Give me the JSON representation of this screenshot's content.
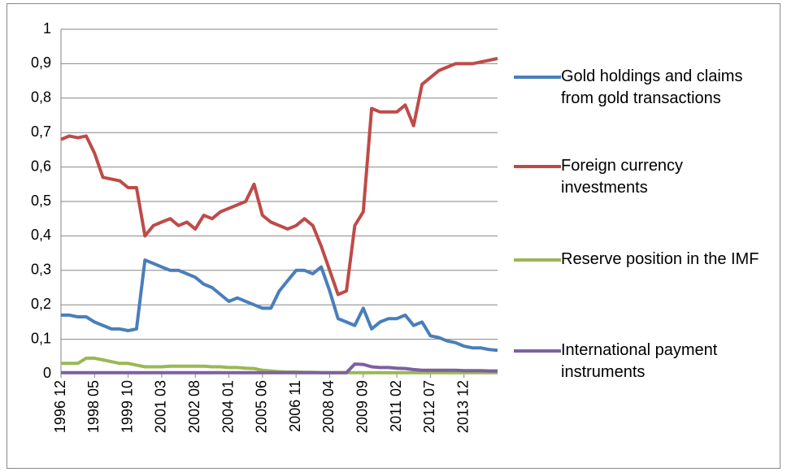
{
  "chart_data": {
    "type": "line",
    "categories": [
      "1996 12",
      null,
      null,
      null,
      "1998 05",
      null,
      null,
      null,
      "1999 10",
      null,
      null,
      null,
      "2001 03",
      null,
      null,
      null,
      "2002 08",
      null,
      null,
      null,
      "2004 01",
      null,
      null,
      null,
      "2005 06",
      null,
      null,
      null,
      "2006 11",
      null,
      null,
      null,
      "2008 04",
      null,
      null,
      null,
      "2009 09",
      null,
      null,
      null,
      "2011 02",
      null,
      null,
      null,
      "2012 07",
      null,
      null,
      null,
      "2013 12",
      null,
      null,
      null,
      null
    ],
    "series": [
      {
        "name": "Gold holdings and claims from gold transactions",
        "color": "#4a7ebb",
        "values": [
          0.17,
          0.17,
          0.165,
          0.165,
          0.15,
          0.14,
          0.13,
          0.13,
          0.125,
          0.13,
          0.33,
          0.32,
          0.31,
          0.3,
          0.3,
          0.29,
          0.28,
          0.26,
          0.25,
          0.23,
          0.21,
          0.22,
          0.21,
          0.2,
          0.19,
          0.19,
          0.24,
          0.27,
          0.3,
          0.3,
          0.29,
          0.31,
          0.24,
          0.16,
          0.15,
          0.14,
          0.19,
          0.13,
          0.15,
          0.16,
          0.16,
          0.17,
          0.14,
          0.15,
          0.11,
          0.105,
          0.095,
          0.09,
          0.08,
          0.075,
          0.075,
          0.07,
          0.068
        ]
      },
      {
        "name": "Foreign currency investments",
        "color": "#be4b48",
        "values": [
          0.68,
          0.69,
          0.685,
          0.69,
          0.64,
          0.57,
          0.565,
          0.56,
          0.54,
          0.54,
          0.4,
          0.43,
          0.44,
          0.45,
          0.43,
          0.44,
          0.42,
          0.46,
          0.45,
          0.47,
          0.48,
          0.49,
          0.5,
          0.55,
          0.46,
          0.44,
          0.43,
          0.42,
          0.43,
          0.45,
          0.43,
          0.37,
          0.3,
          0.23,
          0.24,
          0.43,
          0.47,
          0.77,
          0.76,
          0.76,
          0.76,
          0.78,
          0.72,
          0.84,
          0.86,
          0.88,
          0.89,
          0.9,
          0.9,
          0.9,
          0.905,
          0.91,
          0.915
        ]
      },
      {
        "name": "Reserve position in the IMF",
        "color": "#98b954",
        "values": [
          0.03,
          0.03,
          0.03,
          0.045,
          0.045,
          0.04,
          0.035,
          0.03,
          0.03,
          0.025,
          0.02,
          0.02,
          0.02,
          0.022,
          0.022,
          0.022,
          0.022,
          0.022,
          0.02,
          0.02,
          0.018,
          0.018,
          0.016,
          0.015,
          0.01,
          0.008,
          0.006,
          0.005,
          0.005,
          0.004,
          0.004,
          0.003,
          0.003,
          0.003,
          0.003,
          0.003,
          0.003,
          0.003,
          0.003,
          0.003,
          0.003,
          0.003,
          0.003,
          0.003,
          0.003,
          0.003,
          0.003,
          0.003,
          0.003,
          0.003,
          0.003,
          0.003,
          0.003
        ]
      },
      {
        "name": "International payment instruments",
        "color": "#7d60a0",
        "values": [
          0.003,
          0.003,
          0.003,
          0.003,
          0.003,
          0.003,
          0.003,
          0.003,
          0.003,
          0.003,
          0.003,
          0.003,
          0.003,
          0.003,
          0.003,
          0.003,
          0.003,
          0.003,
          0.003,
          0.003,
          0.003,
          0.003,
          0.003,
          0.003,
          0.003,
          0.003,
          0.003,
          0.003,
          0.003,
          0.003,
          0.003,
          0.003,
          0.003,
          0.003,
          0.003,
          0.028,
          0.027,
          0.02,
          0.018,
          0.018,
          0.016,
          0.015,
          0.012,
          0.01,
          0.01,
          0.01,
          0.01,
          0.01,
          0.009,
          0.009,
          0.009,
          0.008,
          0.008
        ]
      }
    ],
    "ylim": [
      0,
      1
    ],
    "yticks": [
      0,
      {
        "value": 0.1,
        "label": "0,1"
      },
      {
        "value": 0.2,
        "label": "0,2"
      },
      {
        "value": 0.3,
        "label": "0,3"
      },
      {
        "value": 0.4,
        "label": "0,4"
      },
      {
        "value": 0.5,
        "label": "0,5"
      },
      {
        "value": 0.6,
        "label": "0,6"
      },
      {
        "value": 0.7,
        "label": "0,7"
      },
      {
        "value": 0.8,
        "label": "0,8"
      },
      {
        "value": 0.9,
        "label": "0,9"
      },
      1
    ],
    "grid": true,
    "legend": "right"
  }
}
